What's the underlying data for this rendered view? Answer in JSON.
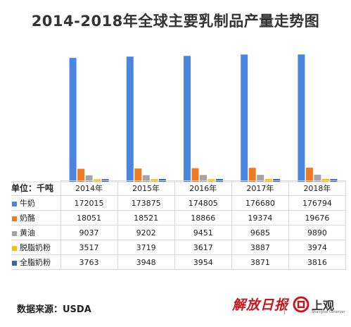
{
  "title": "2014-2018年全球主要乳制品产量走势图",
  "unit_label": "单位：千吨",
  "source": "数据来源：USDA",
  "logos": {
    "jiefang": "解放日报",
    "shangguan": "上观",
    "shangguan_sub": "Shanghai Observer"
  },
  "chart_data": {
    "type": "bar",
    "title": "2014-2018年全球主要乳制品产量走势图",
    "categories": [
      "2014年",
      "2015年",
      "2016年",
      "2017年",
      "2018年"
    ],
    "ylim": [
      0,
      180000
    ],
    "grid": false,
    "legend": "table-left",
    "series": [
      {
        "name": "牛奶",
        "color": "#4a86e0",
        "values": [
          172015,
          173875,
          174805,
          176680,
          176794
        ]
      },
      {
        "name": "奶酪",
        "color": "#f07a22",
        "values": [
          18051,
          18521,
          18866,
          19374,
          19676
        ]
      },
      {
        "name": "黄油",
        "color": "#a5a5a5",
        "values": [
          9037,
          9202,
          9451,
          9685,
          9890
        ]
      },
      {
        "name": "脱脂奶粉",
        "color": "#fbbf0a",
        "values": [
          3517,
          3719,
          3617,
          3887,
          3974
        ]
      },
      {
        "name": "全脂奶粉",
        "color": "#3c63b0",
        "values": [
          3763,
          3948,
          3954,
          3871,
          3816
        ]
      }
    ]
  }
}
